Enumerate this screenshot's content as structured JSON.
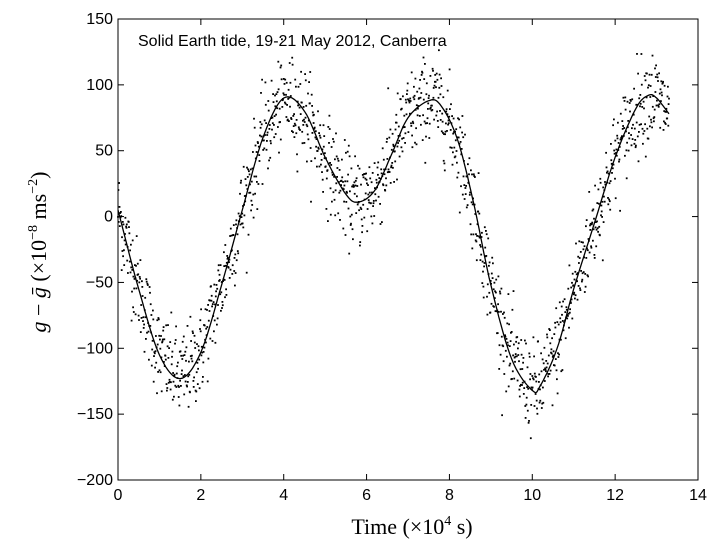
{
  "chart_data": {
    "type": "scatter",
    "annotation": "Solid Earth tide,  19-21 May 2012,  Canberra",
    "xlabel": "Time (×10⁴ s)",
    "ylabel": "g − ḡ   (×10⁻⁸ ms⁻²)",
    "xlim": [
      0,
      14
    ],
    "ylim": [
      -200,
      150
    ],
    "xticks": [
      0,
      2,
      4,
      6,
      8,
      10,
      12,
      14
    ],
    "yticks": [
      -200,
      -150,
      -100,
      -50,
      0,
      50,
      100,
      150
    ],
    "grid": false,
    "series": [
      {
        "kind": "line",
        "x": [
          0,
          0.5,
          1.0,
          1.5,
          2.0,
          2.5,
          3.0,
          3.5,
          4.0,
          4.5,
          5.0,
          5.5,
          5.8,
          6.2,
          6.6,
          7.0,
          7.5,
          7.8,
          8.2,
          8.6,
          9.0,
          9.5,
          10.0,
          10.2,
          10.6,
          11.0,
          11.5,
          12.0,
          12.5,
          12.8,
          13.0,
          13.3
        ],
        "y": [
          5,
          -55,
          -105,
          -123,
          -103,
          -52,
          5,
          60,
          90,
          80,
          45,
          17,
          11,
          20,
          47,
          75,
          88,
          84,
          58,
          8,
          -52,
          -108,
          -132,
          -128,
          -100,
          -55,
          -5,
          45,
          82,
          92,
          90,
          78
        ]
      },
      {
        "kind": "scatter",
        "description": "measured gravity residuals (~1500 points scattered around the model curve with ~±30 spread)",
        "point_count": 1500,
        "noise_sd": 17
      }
    ]
  }
}
